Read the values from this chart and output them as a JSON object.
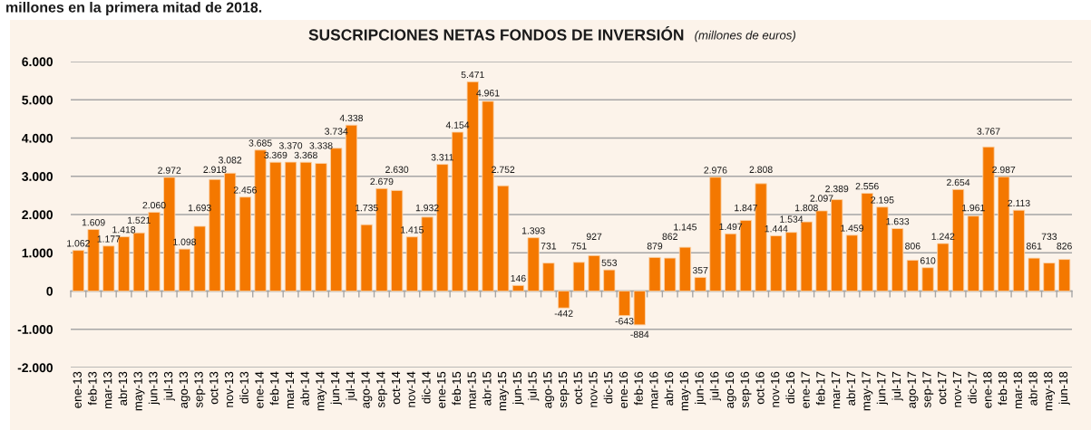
{
  "chart_data": {
    "type": "bar",
    "title": "SUSCRIPCIONES NETAS FONDOS DE INVERSIÓN",
    "subtitle": "(millones de euros)",
    "annotations": [
      "millones en la primera mitad de 2018."
    ],
    "categories": [
      "ene-13",
      "feb-13",
      "mar-13",
      "abr-13",
      "may-13",
      "jun-13",
      "jul-13",
      "ago-13",
      "sep-13",
      "oct-13",
      "nov-13",
      "dic-13",
      "ene-14",
      "feb-14",
      "mar-14",
      "abr-14",
      "may-14",
      "jun-14",
      "jul-14",
      "ago-14",
      "sep-14",
      "oct-14",
      "nov-14",
      "dic-14",
      "ene-15",
      "feb-15",
      "mar-15",
      "abr-15",
      "may-15",
      "jun-15",
      "jul-15",
      "ago-15",
      "sep-15",
      "oct-15",
      "nov-15",
      "dic-15",
      "ene-16",
      "feb-16",
      "mar-16",
      "abr-16",
      "may-16",
      "jun-16",
      "jul-16",
      "ago-16",
      "sep-16",
      "oct-16",
      "nov-16",
      "dic-16",
      "ene-17",
      "feb-17",
      "mar-17",
      "abr-17",
      "may-17",
      "jun-17",
      "jul-17",
      "ago-17",
      "sep-17",
      "oct-17",
      "nov-17",
      "dic-17",
      "ene-18",
      "feb-18",
      "mar-18",
      "abr-18",
      "may-18",
      "jun-18"
    ],
    "values": [
      1062,
      1609,
      1177,
      1418,
      1521,
      2060,
      2972,
      1098,
      1693,
      2918,
      3082,
      2456,
      3685,
      3369,
      3370,
      3368,
      3338,
      3734,
      4338,
      1735,
      2679,
      2630,
      1415,
      1932,
      3311,
      4154,
      5471,
      4961,
      2752,
      146,
      1393,
      731,
      -442,
      751,
      927,
      553,
      -643,
      -884,
      879,
      862,
      1145,
      357,
      2976,
      1497,
      1847,
      2808,
      1444,
      1534,
      1808,
      2097,
      2389,
      1459,
      2556,
      2195,
      1633,
      806,
      610,
      1242,
      2654,
      1961,
      3767,
      2987,
      2113,
      861,
      733,
      826
    ],
    "value_labels": [
      "1.062",
      "1.609",
      "1.177",
      "1.418",
      "1.521",
      "2.060",
      "2.972",
      "1.098",
      "1.693",
      "2.918",
      "3.082",
      "2.456",
      "3.685",
      "3.369",
      "3.370",
      "3.368",
      "3.338",
      "3.734",
      "4.338",
      "1.735",
      "2.679",
      "2.630",
      "1.415",
      "1.932",
      "3.311",
      "4.154",
      "5.471",
      "4.961",
      "2.752",
      "146",
      "1.393",
      "731",
      "-442",
      "751",
      "927",
      "553",
      "-643",
      "-884",
      "879",
      "862",
      "1.145",
      "357",
      "2.976",
      "1.497",
      "1.847",
      "2.808",
      "1.444",
      "1.534",
      "1.808",
      "2.097",
      "2.389",
      "1.459",
      "2.556",
      "2.195",
      "1.633",
      "806",
      "610",
      "1.242",
      "2.654",
      "1.961",
      "3.767",
      "2.987",
      "2.113",
      "861",
      "733",
      "826"
    ],
    "color": "#f47800",
    "ylim": [
      -2000,
      6000
    ],
    "yticks": [
      {
        "value": 6000,
        "label": "6.000"
      },
      {
        "value": 5000,
        "label": "5.000"
      },
      {
        "value": 4000,
        "label": "4.000"
      },
      {
        "value": 3000,
        "label": "3.000"
      },
      {
        "value": 2000,
        "label": "2.000"
      },
      {
        "value": 1000,
        "label": "1.000"
      },
      0,
      {
        "value": -1000,
        "label": "-1.000"
      },
      {
        "value": -2000,
        "label": "-2.000"
      }
    ],
    "grid": "y"
  }
}
